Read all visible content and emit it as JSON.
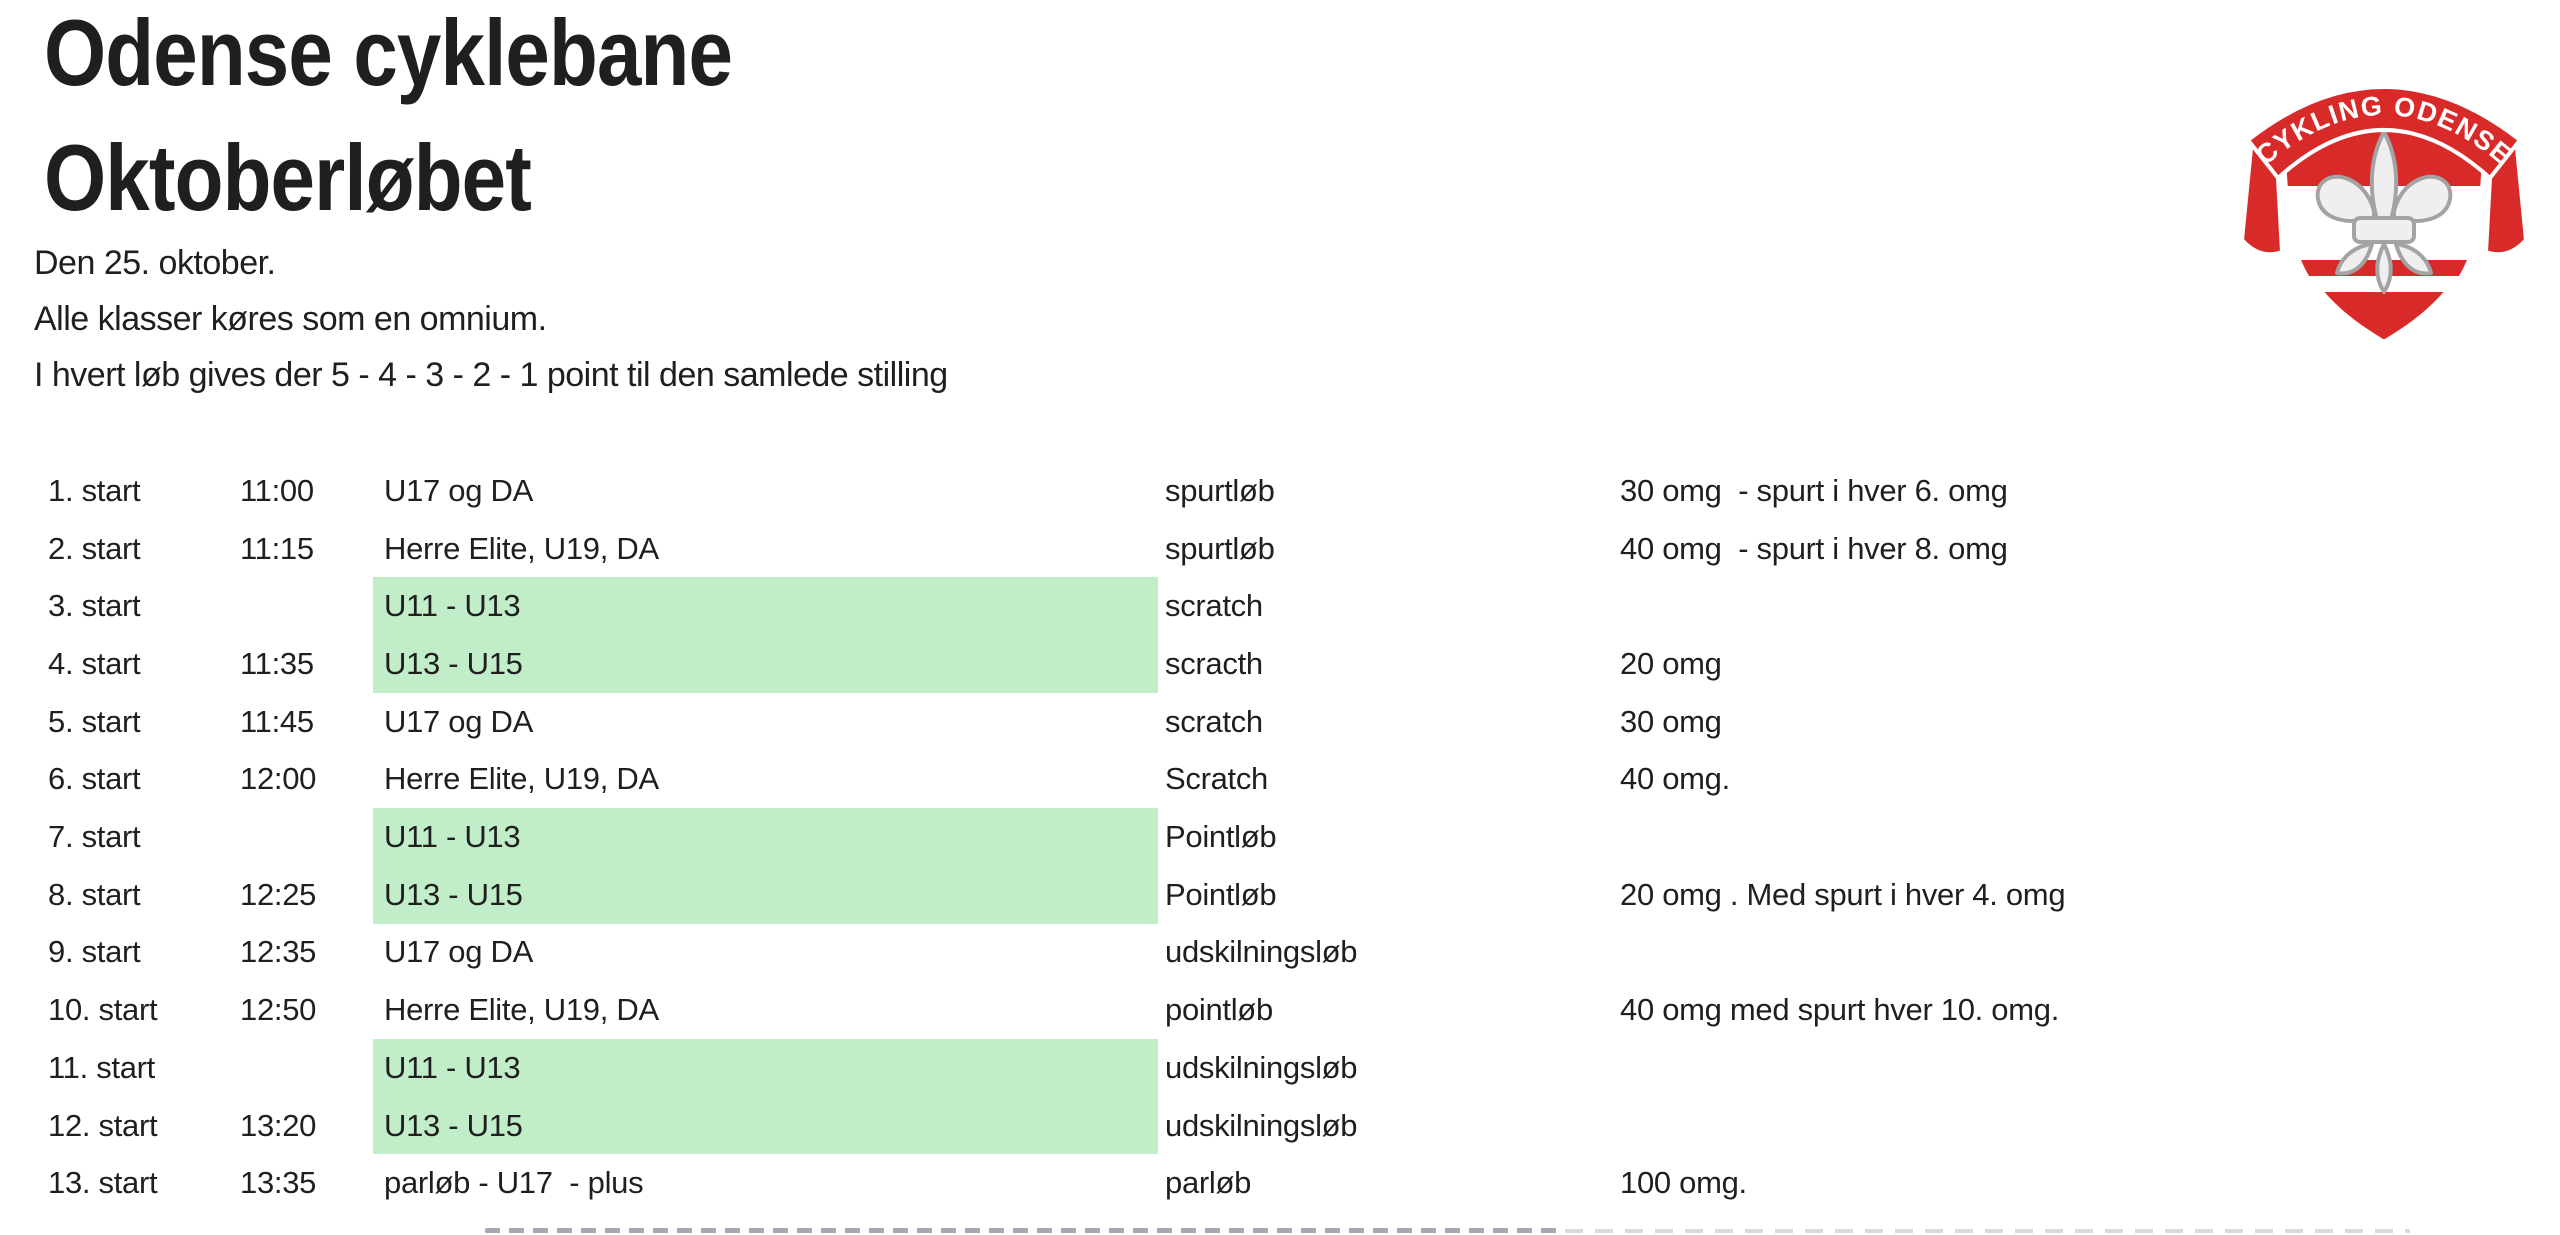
{
  "page": {
    "background": "#ffffff",
    "text_color": "#1f1f1f",
    "highlight_color": "#c2edc9"
  },
  "header": {
    "title_line1": "Odense cyklebane",
    "title_line2": "Oktoberløbet",
    "subtitle_line1": "Den 25. oktober.",
    "subtitle_line2": "Alle klasser køres som en omnium.",
    "subtitle_line3": "I hvert løb gives der 5 - 4 - 3 - 2 - 1 point til den samlede stilling"
  },
  "logo": {
    "banner_text": "CYKLING ODENSE",
    "red": "#d92a2a",
    "emblem": "fleur-de-lis-shield"
  },
  "schedule": {
    "rows": [
      {
        "start": "1. start",
        "time": "11:00",
        "class": "U17 og DA",
        "race": "spurtløb",
        "details": "30 omg  - spurt i hver 6. omg",
        "highlight": false
      },
      {
        "start": "2. start",
        "time": "11:15",
        "class": "Herre Elite, U19, DA",
        "race": "spurtløb",
        "details": "40 omg  - spurt i hver 8. omg",
        "highlight": false
      },
      {
        "start": "3. start",
        "time": "",
        "class": "U11 - U13",
        "race": "scratch",
        "details": "",
        "highlight": true
      },
      {
        "start": "4. start",
        "time": "11:35",
        "class": "U13 - U15",
        "race": "scracth",
        "details": "20 omg",
        "highlight": true
      },
      {
        "start": "5. start",
        "time": "11:45",
        "class": "U17 og DA",
        "race": "scratch",
        "details": "30 omg",
        "highlight": false
      },
      {
        "start": "6. start",
        "time": "12:00",
        "class": "Herre Elite, U19, DA",
        "race": "Scratch",
        "details": "40 omg.",
        "highlight": false
      },
      {
        "start": "7. start",
        "time": "",
        "class": "U11 - U13",
        "race": "Pointløb",
        "details": "",
        "highlight": true
      },
      {
        "start": "8. start",
        "time": "12:25",
        "class": "U13 - U15",
        "race": "Pointløb",
        "details": "20 omg . Med spurt i hver 4. omg",
        "highlight": true
      },
      {
        "start": "9. start",
        "time": "12:35",
        "class": "U17 og DA",
        "race": "udskilningsløb",
        "details": "",
        "highlight": false
      },
      {
        "start": "10. start",
        "time": "12:50",
        "class": "Herre Elite, U19, DA",
        "race": "pointløb",
        "details": "40 omg med spurt hver 10. omg.",
        "highlight": false
      },
      {
        "start": "11. start",
        "time": "",
        "class": "U11 - U13",
        "race": "udskilningsløb",
        "details": "",
        "highlight": true
      },
      {
        "start": "12. start",
        "time": "13:20",
        "class": "U13 - U15",
        "race": "udskilningsløb",
        "details": "",
        "highlight": true
      },
      {
        "start": "13. start",
        "time": "13:35",
        "class": "parløb - U17  - plus",
        "race": "parløb",
        "details": "100 omg.",
        "highlight": false
      }
    ]
  }
}
